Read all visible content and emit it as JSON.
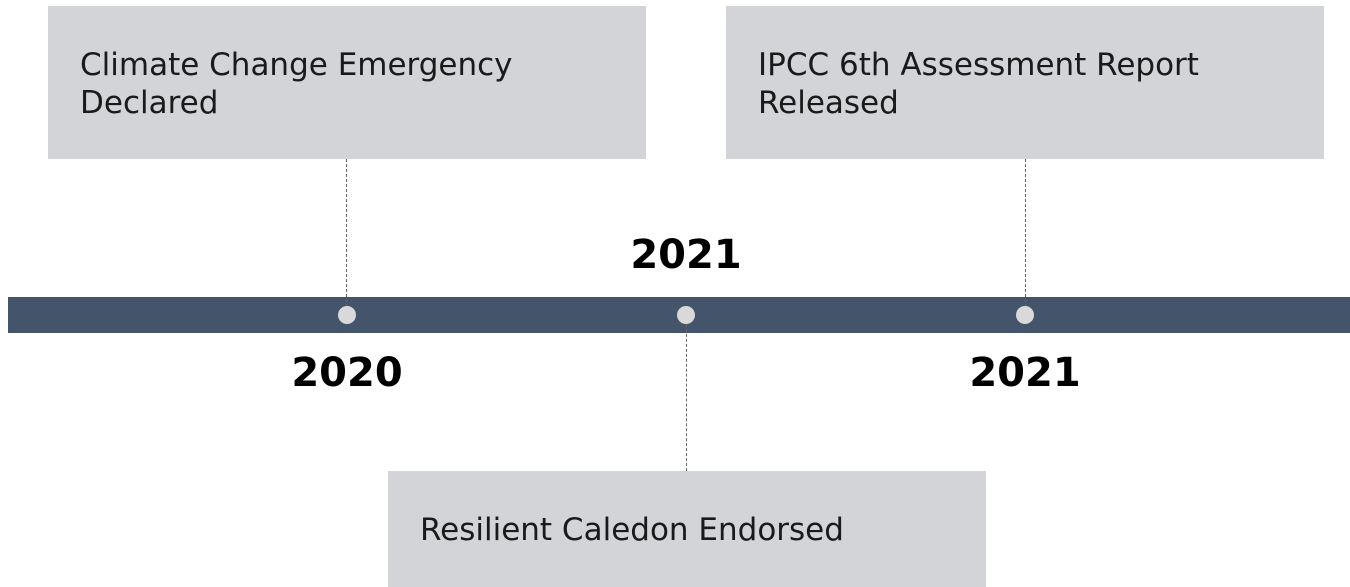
{
  "events": [
    {
      "label": "Climate Change Emergency Declared",
      "year": "2020"
    },
    {
      "label": "Resilient Caledon Endorsed",
      "year": "2021"
    },
    {
      "label": "IPCC 6th Assessment Report Released",
      "year": "2021"
    }
  ]
}
